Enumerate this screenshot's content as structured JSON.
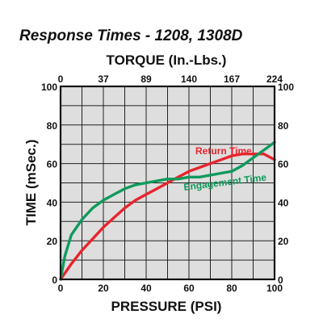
{
  "chart_data": {
    "type": "line",
    "title": "Response Times - 1208, 1308D",
    "xlabel": "PRESSURE (PSI)",
    "ylabel": "TIME (mSec.)",
    "top_axis_label": "TORQUE (In.-Lbs.)",
    "xlim": [
      0,
      100
    ],
    "ylim": [
      0,
      100
    ],
    "x_ticks": [
      0,
      20,
      40,
      60,
      80,
      100
    ],
    "y_ticks": [
      0,
      20,
      40,
      60,
      80,
      100
    ],
    "top_ticks": [
      {
        "label": "0",
        "at_pressure": 0
      },
      {
        "label": "37",
        "at_pressure": 20
      },
      {
        "label": "89",
        "at_pressure": 40
      },
      {
        "label": "140",
        "at_pressure": 60
      },
      {
        "label": "167",
        "at_pressure": 80
      },
      {
        "label": "224",
        "at_pressure": 100
      }
    ],
    "grid": true,
    "grid_step_x": 10,
    "grid_step_y": 10,
    "series": [
      {
        "name": "Return Time",
        "color": "#e8242c",
        "x": [
          0,
          5,
          10,
          15,
          20,
          25,
          30,
          35,
          40,
          45,
          50,
          55,
          60,
          65,
          70,
          75,
          80,
          85,
          90,
          95,
          100
        ],
        "y": [
          0,
          8,
          15,
          21,
          27,
          32,
          37,
          41,
          44,
          47,
          50,
          53,
          56,
          58,
          60,
          62,
          64,
          65,
          65,
          65,
          62
        ]
      },
      {
        "name": "Engagement Time",
        "color": "#0f9a5c",
        "x": [
          0,
          2,
          5,
          10,
          15,
          20,
          25,
          30,
          35,
          40,
          45,
          50,
          55,
          60,
          65,
          70,
          75,
          80,
          85,
          90,
          95,
          100
        ],
        "y": [
          0,
          12,
          23,
          31,
          37,
          41,
          44,
          47,
          49,
          50,
          51,
          52,
          52,
          53,
          53,
          54,
          55,
          56,
          59,
          63,
          67,
          71
        ]
      }
    ]
  }
}
